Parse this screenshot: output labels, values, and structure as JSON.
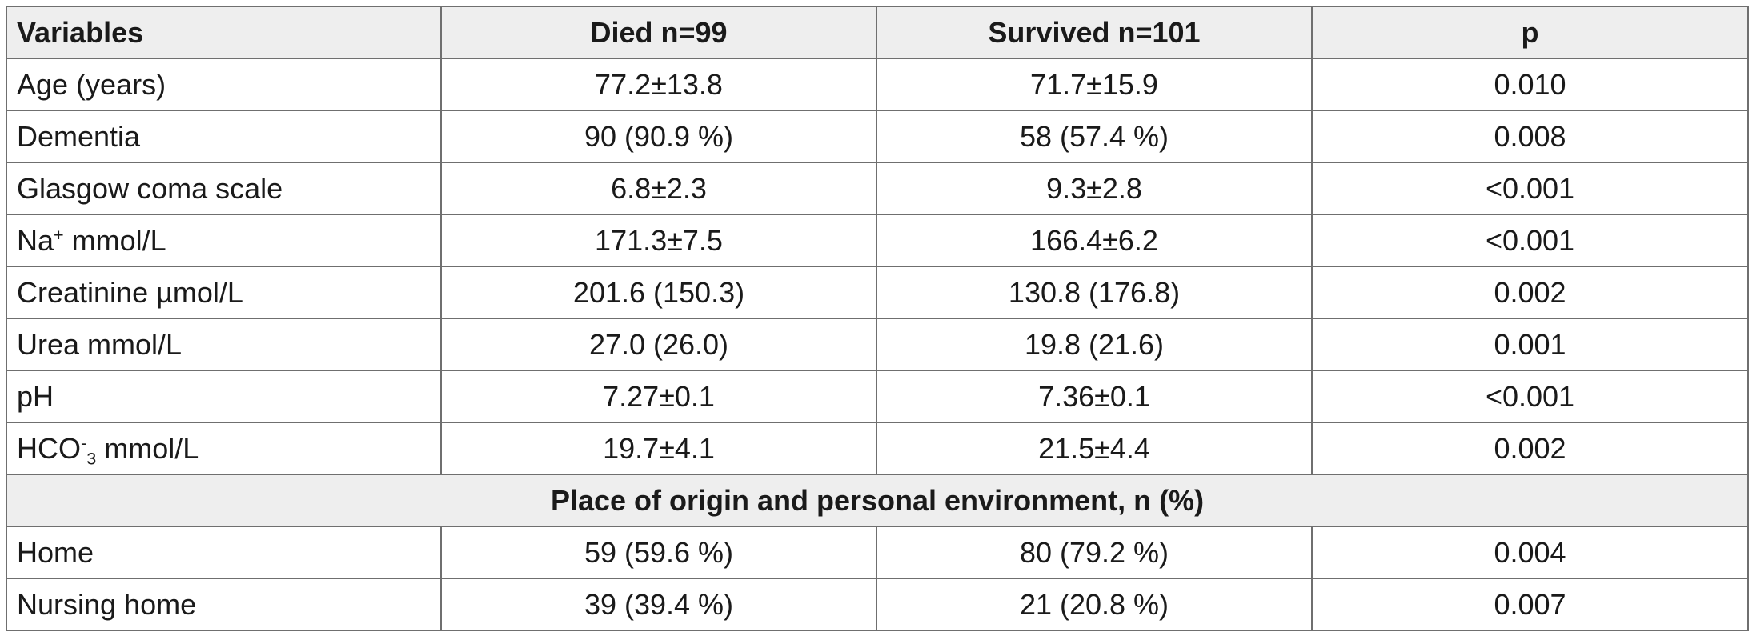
{
  "table": {
    "headers": [
      "Variables",
      "Died n=99",
      "Survived n=101",
      "p"
    ],
    "rows": [
      {
        "label": "Age (years)",
        "died": "77.2±13.8",
        "survived": "71.7±15.9",
        "p": "0.010"
      },
      {
        "label": "Dementia",
        "died": "90 (90.9 %)",
        "survived": "58 (57.4 %)",
        "p": "0.008"
      },
      {
        "label": "Glasgow coma scale",
        "died": "6.8±2.3",
        "survived": "9.3±2.8",
        "p": "<0.001"
      },
      {
        "label_base": "Na",
        "label_sup": "+",
        "label_rest": " mmol/L",
        "died": "171.3±7.5",
        "survived": "166.4±6.2",
        "p": "<0.001"
      },
      {
        "label": "Creatinine µmol/L",
        "died": "201.6 (150.3)",
        "survived": "130.8 (176.8)",
        "p": "0.002"
      },
      {
        "label": "Urea mmol/L",
        "died": "27.0 (26.0)",
        "survived": "19.8 (21.6)",
        "p": "0.001"
      },
      {
        "label": "pH",
        "died": "7.27±0.1",
        "survived": "7.36±0.1",
        "p": "<0.001"
      },
      {
        "label_base": "HCO",
        "label_sup": "-",
        "label_sub": "3",
        "label_rest": " mmol/L",
        "died": "19.7±4.1",
        "survived": "21.5±4.4",
        "p": "0.002"
      }
    ],
    "section_title": "Place of origin and personal environment, n (%)",
    "section_rows": [
      {
        "label": "Home",
        "died": "59 (59.6 %)",
        "survived": "80 (79.2 %)",
        "p": "0.004"
      },
      {
        "label": "Nursing home",
        "died": "39 (39.4 %)",
        "survived": "21 (20.8 %)",
        "p": "0.007"
      }
    ]
  }
}
